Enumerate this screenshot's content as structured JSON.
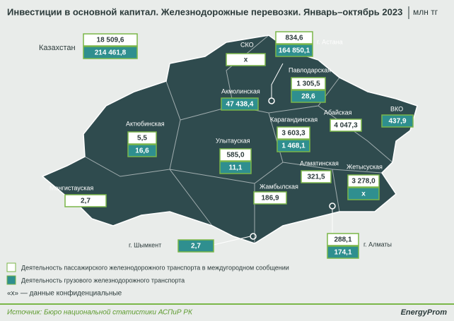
{
  "header": {
    "title": "Инвестиции в основной капитал. Железнодорожные перевозки. Январь–октябрь 2023",
    "unit": "млн тг"
  },
  "regions": [
    {
      "name": "Казахстан",
      "passenger": "18 509,6",
      "freight": "214 461,8"
    },
    {
      "name": "г. Астана",
      "passenger": "834,6",
      "freight": "164 850,1"
    },
    {
      "name": "СКО",
      "passenger": "х"
    },
    {
      "name": "Павлодарская",
      "passenger": "1 305,5",
      "freight": "28,6"
    },
    {
      "name": "Акмолинская",
      "freight": "47 438,4"
    },
    {
      "name": "Абайская",
      "passenger": "4 047,3"
    },
    {
      "name": "ВКО",
      "freight": "437,9"
    },
    {
      "name": "Актюбинская",
      "passenger": "5,5",
      "freight": "16,6"
    },
    {
      "name": "Карагандинская",
      "passenger": "3 603,3",
      "freight": "1 468,1"
    },
    {
      "name": "Улытауская",
      "passenger": "585,0",
      "freight": "11,1"
    },
    {
      "name": "Алматинская",
      "passenger": "321,5"
    },
    {
      "name": "Жетысуская",
      "passenger": "3 278,0",
      "freight": "х"
    },
    {
      "name": "Мангистауская",
      "passenger": "2,7"
    },
    {
      "name": "Жамбылская",
      "passenger": "186,9"
    },
    {
      "name": "г. Шымкент",
      "freight": "2,7"
    },
    {
      "name": "г. Алматы",
      "passenger": "288,1",
      "freight": "174,1"
    }
  ],
  "legend": {
    "passenger": "Деятельность пассажирского железнодорожного транспорта в междугородном сообщении",
    "freight": "Деятельность грузового железнодорожного транспорта"
  },
  "note": "«х» — данные конфиденциальные",
  "footer": {
    "source": "Источник: Бюро национальной статистики АСПиР РК",
    "brand": "EnergyProm"
  }
}
